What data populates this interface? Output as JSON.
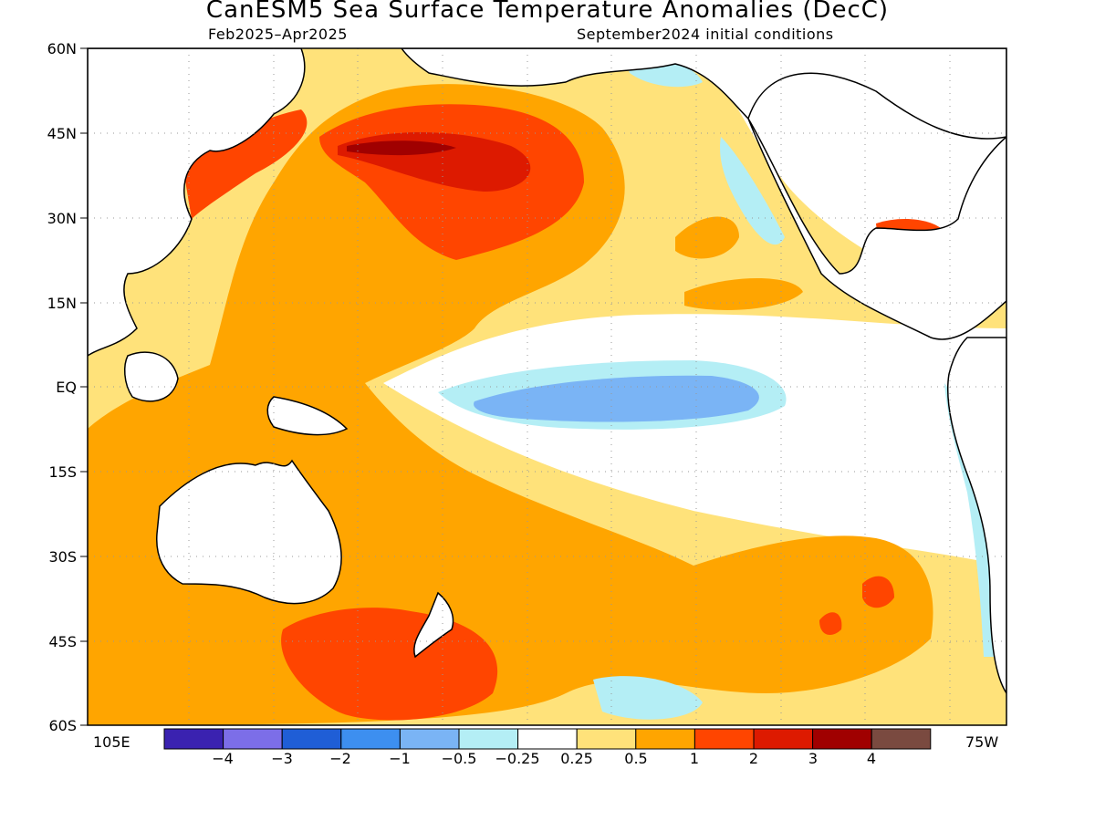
{
  "header": {
    "title": "CanESM5 Sea Surface Temperature Anomalies (DecC)",
    "period": "Feb2025–Apr2025",
    "initial_conditions": "September2024 initial conditions"
  },
  "axes": {
    "lat_labels": [
      "60N",
      "45N",
      "30N",
      "15N",
      "EQ",
      "15S",
      "30S",
      "45S",
      "60S"
    ],
    "lat_values": [
      60,
      45,
      30,
      15,
      0,
      -15,
      -30,
      -45,
      -60
    ],
    "lon_left": "105E",
    "lon_right": "75W",
    "grid": "dotted"
  },
  "colorbar": {
    "ticks": [
      "−4",
      "−3",
      "−2",
      "−1",
      "−0.5",
      "−0.25",
      "0.25",
      "0.5",
      "1",
      "2",
      "3",
      "4"
    ],
    "tick_values": [
      -4,
      -3,
      -2,
      -1,
      -0.5,
      -0.25,
      0.25,
      0.5,
      1,
      2,
      3,
      4
    ],
    "colors": [
      "#3a22b0",
      "#7c6ee8",
      "#1f5ed6",
      "#3d8ff0",
      "#7ab4f5",
      "#b4eef5",
      "#ffffff",
      "#ffe27a",
      "#ffa500",
      "#ff4500",
      "#dd1a00",
      "#a00000",
      "#7a4a40"
    ]
  },
  "map_colors": {
    "land": "#ffffff",
    "coast": "#000000",
    "neutral": "#ffffff",
    "weak_warm": "#ffe27a",
    "warm": "#ffa500",
    "strong_warm": "#ff4500",
    "very_warm": "#dd1a00",
    "extreme_warm": "#a00000",
    "weak_cool": "#b4eef5",
    "cool": "#7ab4f5",
    "strong_cool": "#3d8ff0"
  }
}
